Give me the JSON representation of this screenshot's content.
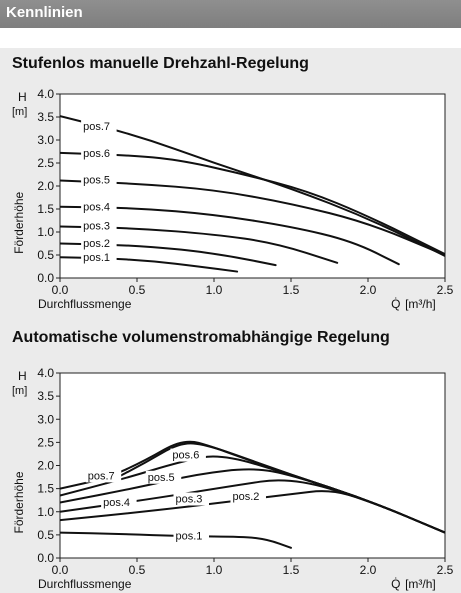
{
  "header": {
    "title": "Kennlinien"
  },
  "chart_data": [
    {
      "type": "line",
      "title": "Stufenlos manuelle Drehzahl-Regelung",
      "xlabel": "Durchflussmenge",
      "xlabel_symbol": "Q̇",
      "xunit": "[m³/h]",
      "ylabel": "Förderhöhe",
      "ylabel_symbol": "H",
      "yunit": "[m]",
      "xlim": [
        0.0,
        2.5
      ],
      "ylim": [
        0.0,
        4.0
      ],
      "xticks": [
        "0.0",
        "0.5",
        "1.0",
        "1.5",
        "2.0",
        "2.5"
      ],
      "yticks": [
        "0.0",
        "0.5",
        "1.0",
        "1.5",
        "2.0",
        "2.5",
        "3.0",
        "3.5",
        "4.0"
      ],
      "grid": false,
      "series": [
        {
          "name": "pos.1",
          "points": [
            [
              0.0,
              0.45
            ],
            [
              0.3,
              0.43
            ],
            [
              0.6,
              0.37
            ],
            [
              0.9,
              0.25
            ],
            [
              1.15,
              0.14
            ]
          ]
        },
        {
          "name": "pos.2",
          "points": [
            [
              0.0,
              0.75
            ],
            [
              0.4,
              0.72
            ],
            [
              0.8,
              0.62
            ],
            [
              1.1,
              0.48
            ],
            [
              1.4,
              0.28
            ]
          ]
        },
        {
          "name": "pos.3",
          "points": [
            [
              0.0,
              1.12
            ],
            [
              0.5,
              1.08
            ],
            [
              1.0,
              0.95
            ],
            [
              1.4,
              0.76
            ],
            [
              1.8,
              0.33
            ]
          ]
        },
        {
          "name": "pos.4",
          "points": [
            [
              0.0,
              1.55
            ],
            [
              0.5,
              1.52
            ],
            [
              1.0,
              1.38
            ],
            [
              1.5,
              1.12
            ],
            [
              1.9,
              0.8
            ],
            [
              2.2,
              0.3
            ]
          ]
        },
        {
          "name": "pos.5",
          "points": [
            [
              0.0,
              2.12
            ],
            [
              0.5,
              2.05
            ],
            [
              1.0,
              1.92
            ],
            [
              1.5,
              1.62
            ],
            [
              2.0,
              1.2
            ],
            [
              2.5,
              0.5
            ]
          ]
        },
        {
          "name": "pos.6",
          "points": [
            [
              0.0,
              2.72
            ],
            [
              0.5,
              2.66
            ],
            [
              0.8,
              2.55
            ],
            [
              1.2,
              2.25
            ],
            [
              1.6,
              1.9
            ],
            [
              2.0,
              1.35
            ],
            [
              2.5,
              0.52
            ]
          ]
        },
        {
          "name": "pos.7",
          "points": [
            [
              0.0,
              3.52
            ],
            [
              0.5,
              3.1
            ],
            [
              1.0,
              2.5
            ],
            [
              1.5,
              1.95
            ],
            [
              2.0,
              1.3
            ],
            [
              2.5,
              0.48
            ]
          ]
        }
      ]
    },
    {
      "type": "line",
      "title": "Automatische volumenstromabhängige Regelung",
      "xlabel": "Durchflussmenge",
      "xlabel_symbol": "Q̇",
      "xunit": "[m³/h]",
      "ylabel": "Förderhöhe",
      "ylabel_symbol": "H",
      "yunit": "[m]",
      "xlim": [
        0.0,
        2.5
      ],
      "ylim": [
        0.0,
        4.0
      ],
      "xticks": [
        "0.0",
        "0.5",
        "1.0",
        "1.5",
        "2.0",
        "2.5"
      ],
      "yticks": [
        "0.0",
        "0.5",
        "1.0",
        "1.5",
        "2.0",
        "2.5",
        "3.0",
        "3.5",
        "4.0"
      ],
      "grid": false,
      "series": [
        {
          "name": "pos.1",
          "points": [
            [
              0.0,
              0.55
            ],
            [
              0.4,
              0.52
            ],
            [
              0.8,
              0.47
            ],
            [
              1.2,
              0.46
            ],
            [
              1.35,
              0.4
            ],
            [
              1.5,
              0.22
            ]
          ]
        },
        {
          "name": "pos.2",
          "points": [
            [
              0.0,
              0.82
            ],
            [
              0.6,
              1.02
            ],
            [
              1.1,
              1.22
            ],
            [
              1.5,
              1.38
            ],
            [
              1.75,
              1.48
            ],
            [
              2.0,
              1.25
            ],
            [
              2.5,
              0.55
            ]
          ]
        },
        {
          "name": "pos.3",
          "points": [
            [
              0.0,
              1.0
            ],
            [
              0.6,
              1.28
            ],
            [
              1.1,
              1.55
            ],
            [
              1.5,
              1.75
            ],
            [
              2.0,
              1.25
            ],
            [
              2.5,
              0.55
            ]
          ]
        },
        {
          "name": "pos.4",
          "points": [
            [
              0.0,
              1.2
            ],
            [
              0.5,
              1.52
            ],
            [
              0.9,
              1.82
            ],
            [
              1.25,
              1.95
            ],
            [
              1.5,
              1.8
            ],
            [
              2.0,
              1.25
            ],
            [
              2.5,
              0.55
            ]
          ]
        },
        {
          "name": "pos.5",
          "points": [
            [
              0.0,
              1.35
            ],
            [
              0.4,
              1.7
            ],
            [
              0.8,
              2.1
            ],
            [
              1.05,
              2.25
            ],
            [
              1.5,
              1.8
            ],
            [
              2.0,
              1.25
            ],
            [
              2.5,
              0.55
            ]
          ]
        },
        {
          "name": "pos.6",
          "points": [
            [
              0.3,
              1.62
            ],
            [
              0.55,
              2.05
            ],
            [
              0.78,
              2.5
            ],
            [
              0.95,
              2.45
            ],
            [
              1.2,
              2.15
            ],
            [
              1.5,
              1.8
            ],
            [
              2.0,
              1.25
            ],
            [
              2.5,
              0.55
            ]
          ]
        },
        {
          "name": "pos.7",
          "points": [
            [
              0.0,
              1.5
            ],
            [
              0.3,
              1.72
            ],
            [
              0.55,
              2.1
            ],
            [
              0.8,
              2.58
            ],
            [
              1.0,
              2.4
            ],
            [
              1.5,
              1.8
            ],
            [
              2.0,
              1.25
            ],
            [
              2.5,
              0.55
            ]
          ]
        }
      ]
    }
  ]
}
